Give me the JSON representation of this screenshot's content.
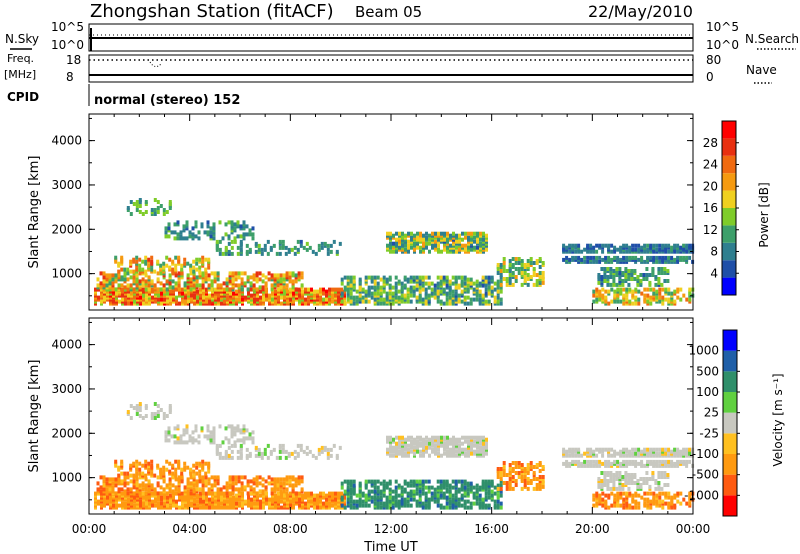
{
  "header": {
    "title": "Zhongshan Station (fitACF)",
    "beam": "Beam 05",
    "date": "22/May/2010"
  },
  "param_panel": {
    "nsky_label": "N.Sky",
    "nsearch_label": "N.Search",
    "nsky_ticks": [
      "10^5",
      "10^0"
    ],
    "nsearch_ticks": [
      "10^5",
      "10^0"
    ],
    "freq_label_1": "Freq.",
    "freq_label_2": "[MHz]",
    "freq_ticks": [
      "18",
      "8"
    ],
    "nave_label": "Nave",
    "nave_ticks": [
      "80",
      "0"
    ],
    "cpid_label": "CPID",
    "cpid_value": "normal (stereo) 152"
  },
  "colors": {
    "power_bar": [
      "#0000ff",
      "#1f4fa8",
      "#2f7f8f",
      "#3d9f6a",
      "#7fcc2a",
      "#f0d020",
      "#f59a10",
      "#f06a10",
      "#e83010",
      "#ff0000"
    ],
    "velocity_bar": [
      "#ff0000",
      "#ff5a10",
      "#ff9a10",
      "#ffc020",
      "#c8c8c0",
      "#60d040",
      "#2f8f6a",
      "#1f5fa8",
      "#0000ff"
    ]
  },
  "chart_data": [
    {
      "type": "heatmap",
      "quantity": "Power",
      "ylabel": "Slant Range [km]",
      "ylim": [
        180,
        4600
      ],
      "yticks": [
        "4000",
        "3000",
        "2000",
        "1000"
      ],
      "x": [
        "00:00",
        "04:00",
        "08:00",
        "12:00",
        "16:00",
        "20:00",
        "00:00"
      ],
      "colorbar_label": "Power [dB]",
      "colorbar_ticks": [
        "28",
        "24",
        "20",
        "16",
        "12",
        "8",
        "4"
      ],
      "colorbar_range": [
        0,
        32
      ]
    },
    {
      "type": "heatmap",
      "quantity": "Velocity",
      "ylabel": "Slant Range [km]",
      "ylim": [
        180,
        4600
      ],
      "yticks": [
        "4000",
        "3000",
        "2000",
        "1000"
      ],
      "x": [
        "00:00",
        "04:00",
        "08:00",
        "12:00",
        "16:00",
        "20:00",
        "00:00"
      ],
      "xlabel": "Time UT",
      "colorbar_label": "Velocity [m s⁻¹]",
      "colorbar_ticks": [
        "1000",
        "500",
        "100",
        "25",
        "-25",
        "-100",
        "-500",
        "-1000"
      ]
    }
  ]
}
